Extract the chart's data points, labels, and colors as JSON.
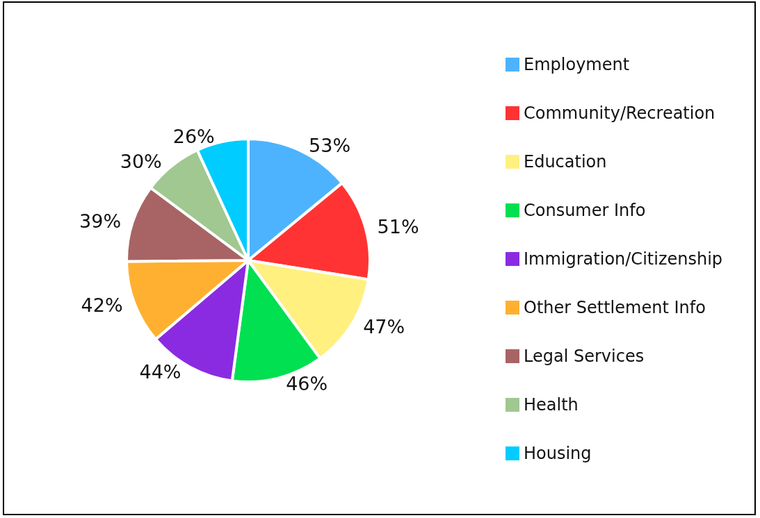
{
  "chart_data": {
    "type": "pie",
    "categories": [
      "Employment",
      "Community/Recreation",
      "Education",
      "Consumer Info",
      "Immigration/Citizenship",
      "Other Settlement Info",
      "Legal Services",
      "Health",
      "Housing"
    ],
    "values": [
      53,
      51,
      47,
      46,
      44,
      42,
      39,
      30,
      26
    ],
    "value_labels": [
      "53%",
      "51%",
      "47%",
      "46%",
      "44%",
      "42%",
      "39%",
      "30%",
      "26%"
    ],
    "colors": [
      "#4db3ff",
      "#ff3333",
      "#fff080",
      "#00e050",
      "#8a2be2",
      "#ffb030",
      "#a86464",
      "#a0c890",
      "#00ccff"
    ],
    "legend": "right"
  }
}
